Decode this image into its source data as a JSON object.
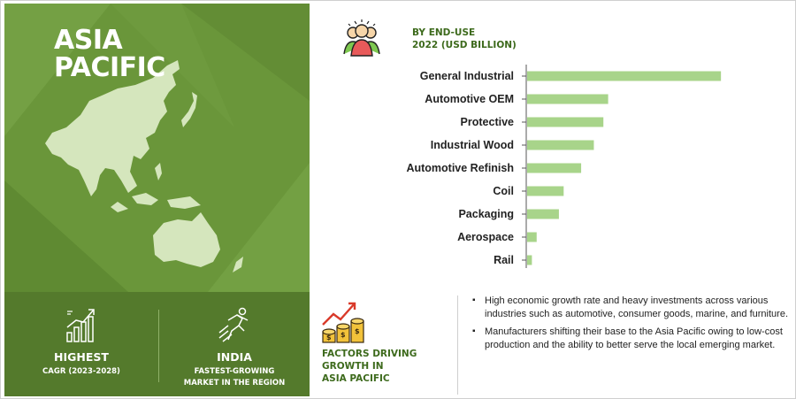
{
  "region": {
    "title_line1": "ASIA",
    "title_line2": "PACIFIC"
  },
  "stats": [
    {
      "headline": "HIGHEST",
      "sub_line1": "CAGR (2023-2028)",
      "sub_line2": "",
      "icon": "bar-growth-icon"
    },
    {
      "headline": "INDIA",
      "sub_line1": "FASTEST-GROWING",
      "sub_line2": "MARKET IN THE REGION",
      "icon": "runner-arrows-icon"
    }
  ],
  "chart_header": {
    "line1": "BY END-USE",
    "line2": "2022 (USD BILLION)",
    "icon": "people-group-icon"
  },
  "chart_data": {
    "type": "bar",
    "orientation": "horizontal",
    "categories": [
      "General Industrial",
      "Automotive OEM",
      "Protective",
      "Industrial Wood",
      "Automotive Refinish",
      "Coil",
      "Packaging",
      "Aerospace",
      "Rail"
    ],
    "values": [
      12.2,
      5.1,
      4.8,
      4.2,
      3.4,
      2.3,
      2.0,
      0.6,
      0.3
    ],
    "title": "BY END-USE 2022 (USD BILLION)",
    "xlabel": "",
    "ylabel": "",
    "xlim": [
      0,
      13.5
    ],
    "bar_color": "#a8d48a",
    "axis_color": "#555555",
    "grid": false
  },
  "factors": {
    "label_line1": "FACTORS DRIVING",
    "label_line2": "GROWTH IN",
    "label_line3": "ASIA PACIFIC",
    "icon": "coins-growth-icon",
    "bullets": [
      "High economic growth rate and heavy investments across various industries such as automotive, consumer goods, marine, and furniture.",
      "Manufacturers shifting their base to the Asia Pacific owing to low-cost production and the ability to better serve the local emerging market."
    ]
  },
  "colors": {
    "panel_green": "#6a963a",
    "panel_dark_green": "#547a2c",
    "title_green": "#3d6a1c",
    "map_fill": "#d5e6bd"
  }
}
